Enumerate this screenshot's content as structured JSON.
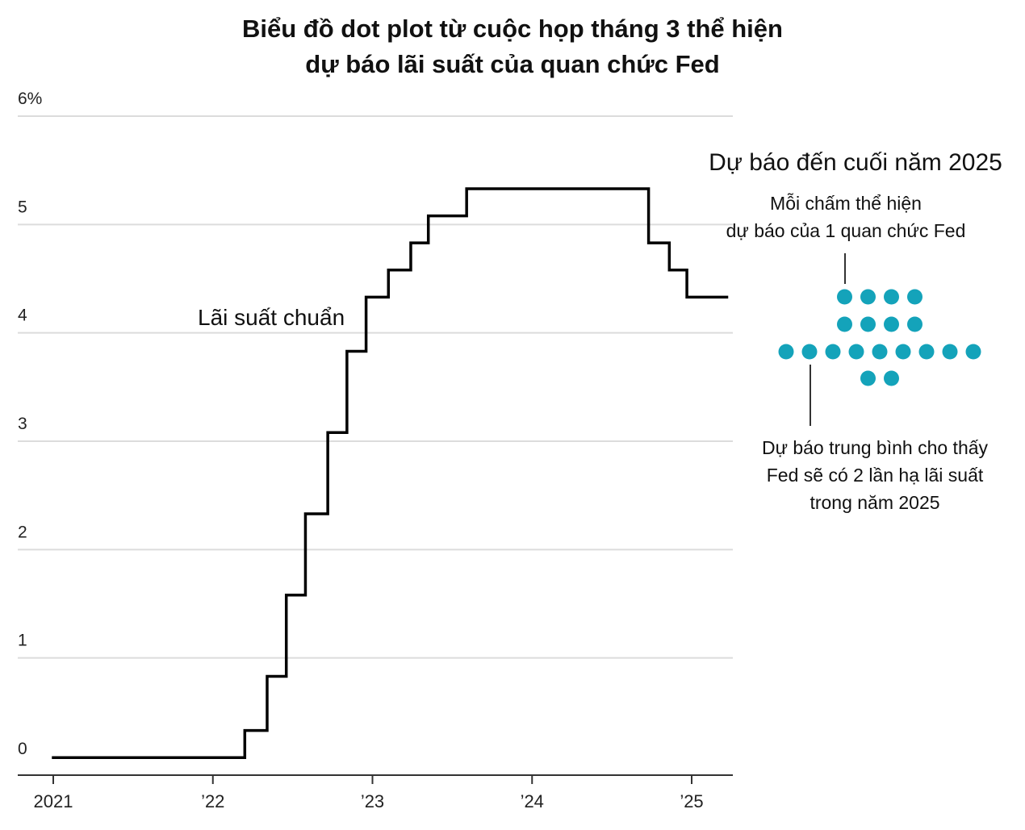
{
  "chart_data": {
    "type": "line",
    "step": true,
    "title_lines": [
      "Biểu đồ dot plot từ cuộc họp tháng 3 thể hiện",
      "dự báo lãi suất của quan chức Fed"
    ],
    "ylim": [
      0,
      6
    ],
    "y_ticks": [
      {
        "value": 0,
        "label": "0"
      },
      {
        "value": 1,
        "label": "1"
      },
      {
        "value": 2,
        "label": "2"
      },
      {
        "value": 3,
        "label": "3"
      },
      {
        "value": 4,
        "label": "4"
      },
      {
        "value": 5,
        "label": "5"
      },
      {
        "value": 6,
        "label": "6%"
      }
    ],
    "xlim": [
      2020.78,
      2025.25
    ],
    "x_ticks": [
      {
        "value": 2021,
        "label": "2021"
      },
      {
        "value": 2022,
        "label": "’22"
      },
      {
        "value": 2023,
        "label": "’23"
      },
      {
        "value": 2024,
        "label": "’24"
      },
      {
        "value": 2025,
        "label": "’25"
      }
    ],
    "series": [
      {
        "name": "Lãi suất chuẩn",
        "color": "#000000",
        "points": [
          {
            "x": 2021.0,
            "y": 0.08
          },
          {
            "x": 2022.2,
            "y": 0.33
          },
          {
            "x": 2022.34,
            "y": 0.83
          },
          {
            "x": 2022.46,
            "y": 1.58
          },
          {
            "x": 2022.58,
            "y": 2.33
          },
          {
            "x": 2022.72,
            "y": 3.08
          },
          {
            "x": 2022.84,
            "y": 3.83
          },
          {
            "x": 2022.96,
            "y": 4.33
          },
          {
            "x": 2023.1,
            "y": 4.58
          },
          {
            "x": 2023.24,
            "y": 4.83
          },
          {
            "x": 2023.35,
            "y": 5.08
          },
          {
            "x": 2023.59,
            "y": 5.33
          },
          {
            "x": 2024.73,
            "y": 4.83
          },
          {
            "x": 2024.86,
            "y": 4.58
          },
          {
            "x": 2024.97,
            "y": 4.33
          }
        ],
        "end_x": 2025.22
      }
    ],
    "dot_plot": {
      "color": "#14A3BA",
      "rows": [
        {
          "rate": 4.375,
          "count": 4
        },
        {
          "rate": 4.125,
          "count": 4
        },
        {
          "rate": 3.875,
          "count": 9
        },
        {
          "rate": 3.625,
          "count": 2
        }
      ]
    },
    "annotations": {
      "series_label": "Lãi suất chuẩn",
      "forecast_title": "Dự báo đến cuối năm 2025",
      "dot_note": [
        "Mỗi chấm thể hiện",
        "dự báo của 1 quan chức Fed"
      ],
      "median_note": [
        "Dự báo trung bình cho thấy",
        "Fed sẽ có 2 lần hạ lãi suất",
        "trong năm 2025"
      ]
    }
  }
}
